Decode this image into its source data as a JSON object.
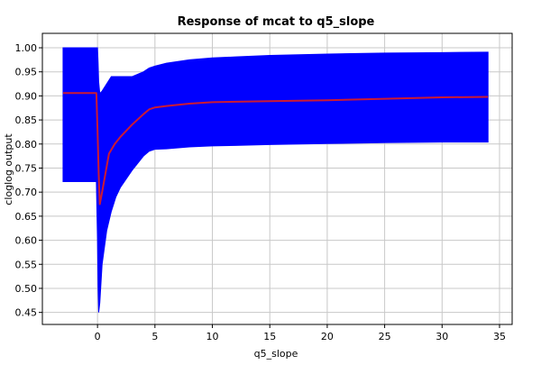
{
  "chart_data": {
    "type": "area",
    "title": "Response of mcat to q5_slope",
    "xlabel": "q5_slope",
    "ylabel": "cloglog output",
    "xlim": [
      -4.8,
      36.1
    ],
    "ylim": [
      0.425,
      1.03
    ],
    "x_ticks": [
      0,
      5,
      10,
      15,
      20,
      25,
      30,
      35
    ],
    "y_ticks": [
      0.45,
      0.5,
      0.55,
      0.6,
      0.65,
      0.7,
      0.75,
      0.8,
      0.85,
      0.9,
      0.95,
      1.0
    ],
    "grid": true,
    "legend": "none",
    "colors": {
      "band": "#0000ff",
      "mean": "#cc1a33",
      "grid": "#c8c8c8",
      "axis": "#000000"
    },
    "series": [
      {
        "role": "band",
        "x": [
          -3.0,
          -0.15,
          -0.1,
          0.0,
          0.05,
          0.1,
          0.2,
          0.4,
          0.8,
          1.2,
          1.6,
          2.0,
          3.0,
          4.0,
          4.5,
          5.0,
          6.0,
          8.0,
          10.0,
          12.0,
          15.0,
          20.0,
          25.0,
          30.0,
          34.0
        ],
        "upper": [
          1.0,
          1.0,
          1.0,
          1.0,
          0.97,
          0.93,
          0.905,
          0.91,
          0.925,
          0.94,
          0.94,
          0.94,
          0.94,
          0.95,
          0.958,
          0.962,
          0.968,
          0.975,
          0.979,
          0.981,
          0.984,
          0.987,
          0.989,
          0.99,
          0.991
        ],
        "lower": [
          0.722,
          0.722,
          0.722,
          0.6,
          0.5,
          0.45,
          0.47,
          0.55,
          0.62,
          0.66,
          0.69,
          0.71,
          0.745,
          0.775,
          0.785,
          0.789,
          0.79,
          0.794,
          0.796,
          0.797,
          0.799,
          0.801,
          0.803,
          0.804,
          0.804
        ]
      },
      {
        "role": "mean",
        "x": [
          -3.0,
          -0.1,
          0.0,
          0.1,
          0.2,
          0.4,
          0.7,
          1.0,
          1.5,
          2.0,
          3.0,
          4.0,
          4.5,
          5.0,
          6.0,
          8.0,
          10.0,
          15.0,
          20.0,
          25.0,
          30.0,
          34.0
        ],
        "y": [
          0.906,
          0.906,
          0.83,
          0.74,
          0.675,
          0.7,
          0.74,
          0.78,
          0.8,
          0.815,
          0.84,
          0.862,
          0.872,
          0.876,
          0.879,
          0.884,
          0.887,
          0.889,
          0.891,
          0.894,
          0.897,
          0.898
        ]
      }
    ]
  }
}
